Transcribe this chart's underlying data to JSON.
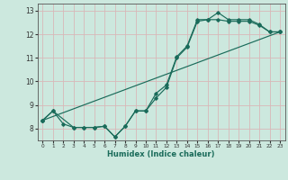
{
  "xlabel": "Humidex (Indice chaleur)",
  "xlim": [
    -0.5,
    23.5
  ],
  "ylim": [
    7.5,
    13.3
  ],
  "xticks": [
    0,
    1,
    2,
    3,
    4,
    5,
    6,
    7,
    8,
    9,
    10,
    11,
    12,
    13,
    14,
    15,
    16,
    17,
    18,
    19,
    20,
    21,
    22,
    23
  ],
  "yticks": [
    8,
    9,
    10,
    11,
    12,
    13
  ],
  "bg_color": "#cce8de",
  "line_color": "#1a6b5a",
  "grid_color": "#d8b8b8",
  "line1_x": [
    0,
    1,
    2,
    3,
    4,
    5,
    6,
    7,
    8,
    9,
    10,
    11,
    12,
    13,
    14,
    15,
    16,
    17,
    18,
    19,
    20,
    21,
    22,
    23
  ],
  "line1_y": [
    8.35,
    8.75,
    8.2,
    8.05,
    8.05,
    8.05,
    8.1,
    7.65,
    8.1,
    8.75,
    8.75,
    9.5,
    9.85,
    11.05,
    11.5,
    12.62,
    12.62,
    12.92,
    12.62,
    12.62,
    12.62,
    12.42,
    12.1,
    12.1
  ],
  "line2_x": [
    0,
    1,
    3,
    4,
    5,
    6,
    7,
    8,
    9,
    10,
    11,
    12,
    13,
    14,
    15,
    16,
    17,
    18,
    19,
    20,
    21,
    22,
    23
  ],
  "line2_y": [
    8.35,
    8.75,
    8.05,
    8.05,
    8.05,
    8.1,
    7.65,
    8.1,
    8.75,
    8.75,
    9.3,
    9.75,
    11.0,
    11.45,
    12.55,
    12.62,
    12.62,
    12.55,
    12.55,
    12.55,
    12.38,
    12.1,
    12.1
  ],
  "line3_x": [
    0,
    23
  ],
  "line3_y": [
    8.35,
    12.1
  ]
}
